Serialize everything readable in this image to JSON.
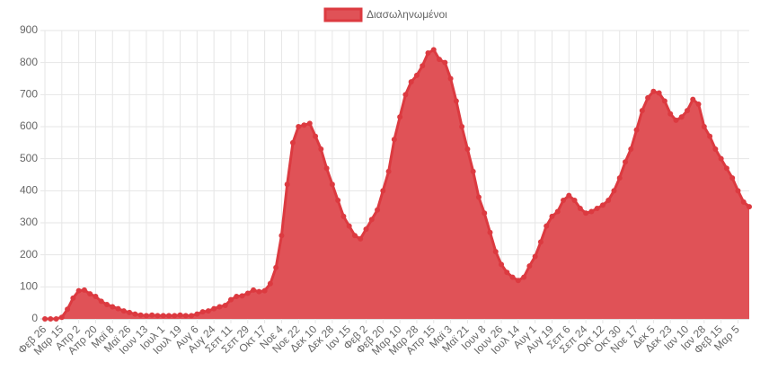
{
  "chart_data": {
    "type": "line",
    "fill": true,
    "legend": "top",
    "categories": [
      "Φεβ 26",
      null,
      null,
      "Μαρ 15",
      null,
      null,
      "Απρ 2",
      null,
      null,
      "Απρ 20",
      null,
      null,
      "Μαϊ 8",
      null,
      null,
      "Μαϊ 26",
      null,
      null,
      "Ιουν 13",
      null,
      null,
      "Ιουλ 1",
      null,
      null,
      "Ιουλ 19",
      null,
      null,
      "Αυγ 6",
      null,
      null,
      "Αυγ 24",
      null,
      null,
      "Σεπ 11",
      null,
      null,
      "Σεπ 29",
      null,
      null,
      "Οκτ 17",
      null,
      null,
      "Νοε 4",
      null,
      null,
      "Νοε 22",
      null,
      null,
      "Δεκ 10",
      null,
      null,
      "Δεκ 28",
      null,
      null,
      "Ιαν 15",
      null,
      null,
      "Φεβ 2",
      null,
      null,
      "Φεβ 20",
      null,
      null,
      "Μαρ 10",
      null,
      null,
      "Μαρ 28",
      null,
      null,
      "Απρ 15",
      null,
      null,
      "Μαϊ 3",
      null,
      null,
      "Μαϊ 21",
      null,
      null,
      "Ιουν 8",
      null,
      null,
      "Ιουν 26",
      null,
      null,
      "Ιουλ 14",
      null,
      null,
      "Αυγ 1",
      null,
      null,
      "Αυγ 19",
      null,
      null,
      "Σεπ 6",
      null,
      null,
      "Σεπ 24",
      null,
      null,
      "Οκτ 12",
      null,
      null,
      "Οκτ 30",
      null,
      null,
      "Νοε 17",
      null,
      null,
      "Δεκ 5",
      null,
      null,
      "Δεκ 23",
      null,
      null,
      "Ιαν 10",
      null,
      null,
      "Ιαν 28",
      null,
      null,
      "Φεβ 15",
      null,
      null,
      "Μαρ 5",
      null,
      null
    ],
    "series": [
      {
        "name": "Διασωληνωμένοι",
        "color": "#dc3a40",
        "fill_color": "#e05257",
        "values": [
          0,
          0,
          0,
          5,
          30,
          65,
          88,
          90,
          78,
          70,
          55,
          45,
          38,
          32,
          25,
          20,
          15,
          12,
          10,
          12,
          10,
          10,
          10,
          10,
          12,
          10,
          10,
          15,
          22,
          25,
          32,
          38,
          42,
          60,
          70,
          72,
          80,
          90,
          85,
          88,
          110,
          160,
          260,
          420,
          550,
          600,
          605,
          610,
          570,
          530,
          470,
          420,
          370,
          320,
          290,
          260,
          250,
          280,
          310,
          340,
          400,
          460,
          560,
          630,
          700,
          740,
          760,
          790,
          830,
          840,
          810,
          800,
          750,
          680,
          600,
          530,
          460,
          380,
          330,
          270,
          210,
          170,
          145,
          130,
          120,
          130,
          165,
          195,
          240,
          290,
          320,
          335,
          370,
          385,
          370,
          345,
          330,
          335,
          345,
          355,
          370,
          400,
          440,
          490,
          530,
          590,
          650,
          690,
          710,
          705,
          680,
          640,
          620,
          630,
          650,
          685,
          670,
          600,
          570,
          530,
          500,
          470,
          440,
          400,
          365,
          350
        ]
      }
    ],
    "ylim": [
      0,
      900
    ],
    "yticks": [
      0,
      100,
      200,
      300,
      400,
      500,
      600,
      700,
      800,
      900
    ],
    "grid": true
  }
}
